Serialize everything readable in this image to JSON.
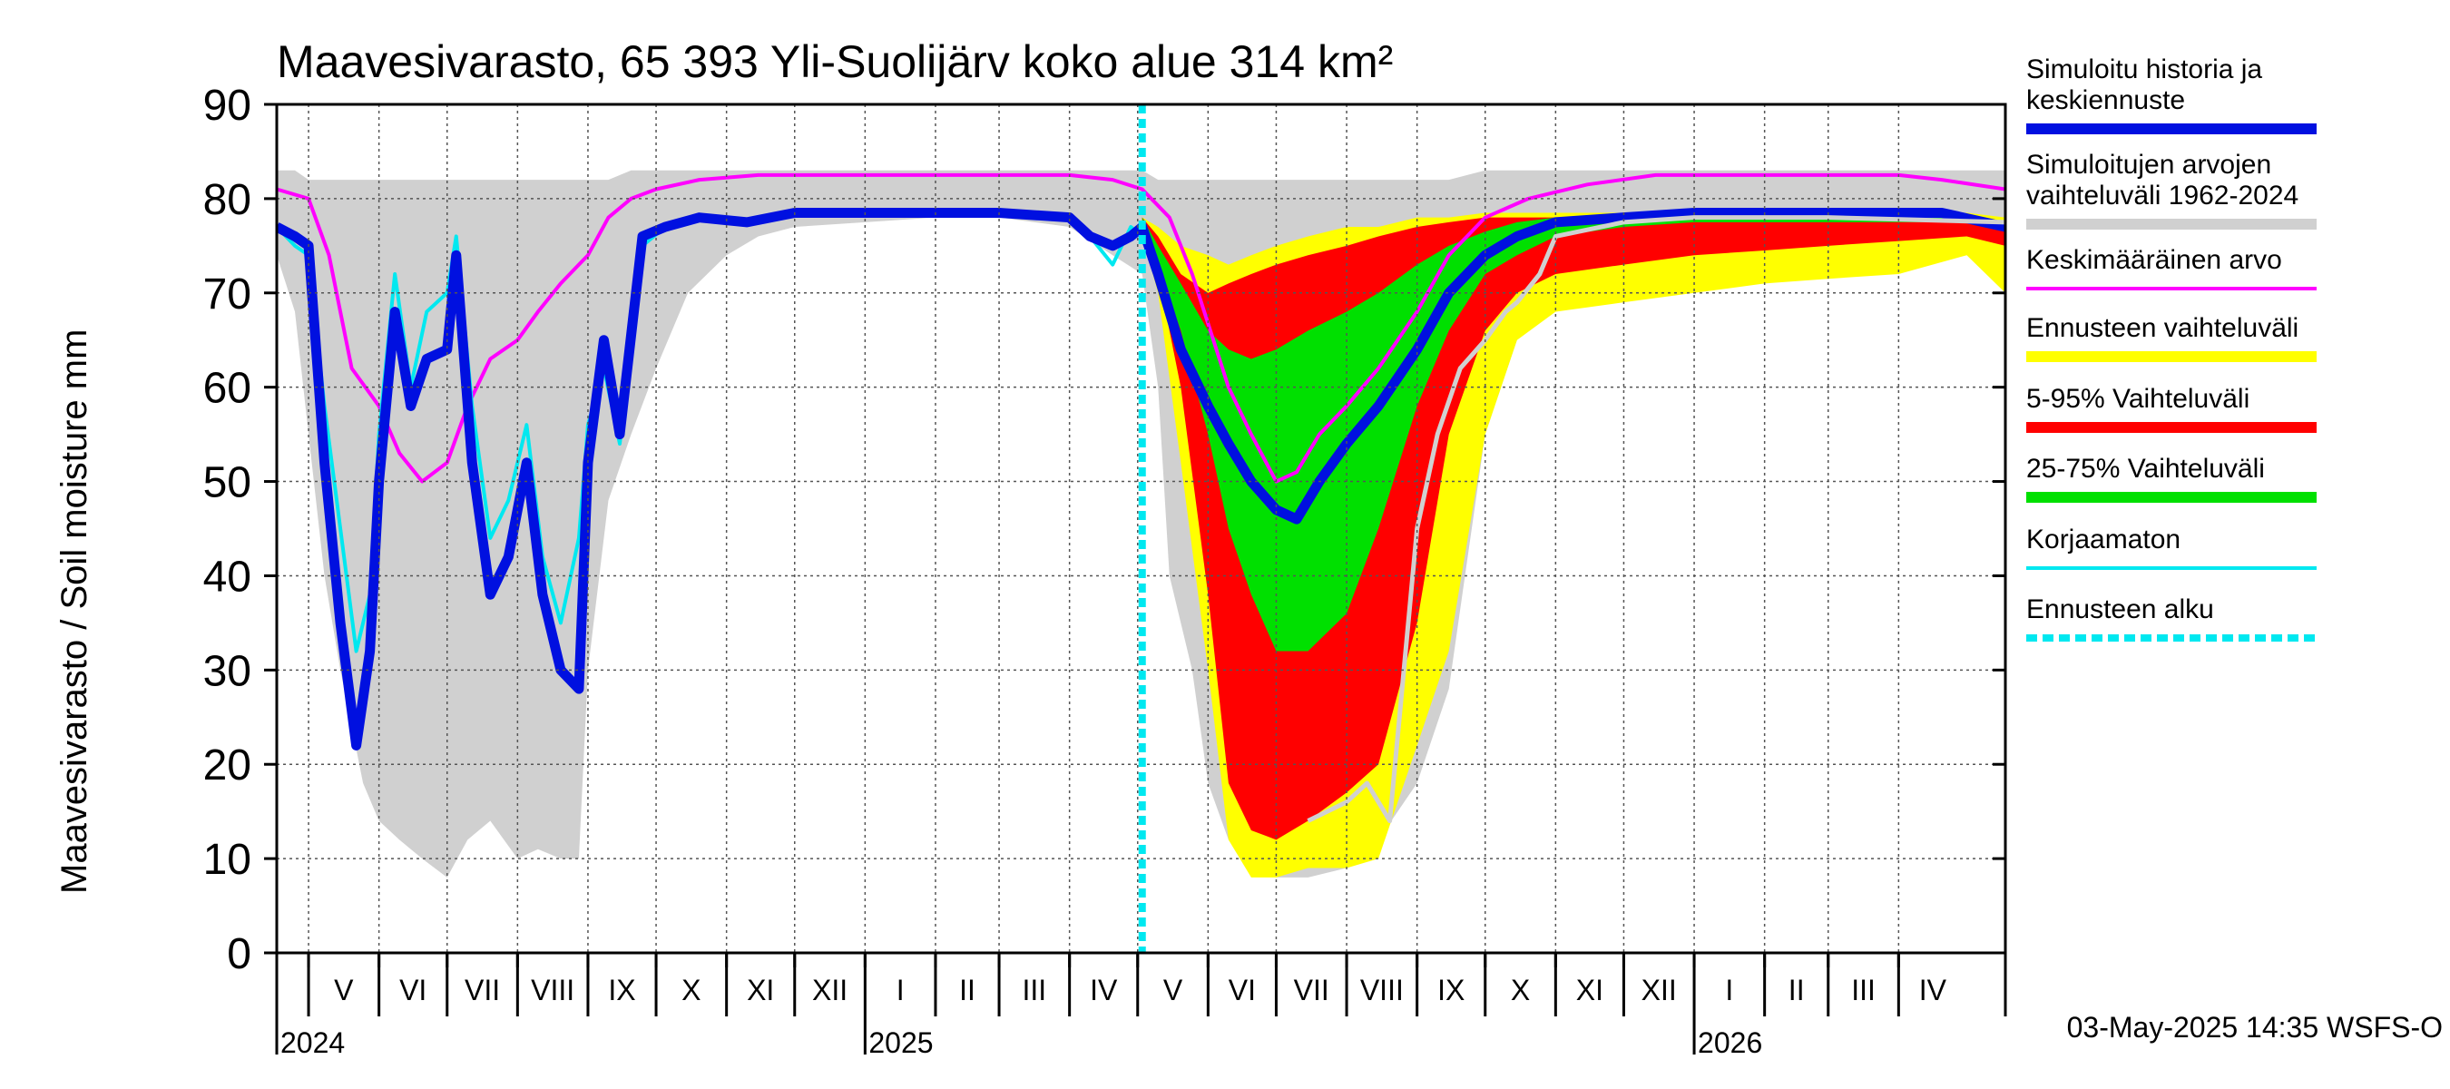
{
  "chart_data": {
    "type": "area",
    "title": "Maavesivarasto, 65 393 Yli-Suolijärv koko alue 314 km²",
    "ylabel": "Maavesivarasto / Soil moisture   mm",
    "xlabel": "",
    "ylim": [
      0,
      90
    ],
    "yticks": [
      0,
      10,
      20,
      30,
      40,
      50,
      60,
      70,
      80,
      90
    ],
    "xlim": [
      "2024-04-17",
      "2026-05-18"
    ],
    "grid": true,
    "legend_placement": "right",
    "timestamp_label": "03-May-2025 14:35 WSFS-O",
    "forecast_start": "2025-05-03",
    "months": [
      {
        "label": "V",
        "start": "2024-05-01",
        "end": "2024-06-01"
      },
      {
        "label": "VI",
        "start": "2024-06-01",
        "end": "2024-07-01"
      },
      {
        "label": "VII",
        "start": "2024-07-01",
        "end": "2024-08-01"
      },
      {
        "label": "VIII",
        "start": "2024-08-01",
        "end": "2024-09-01"
      },
      {
        "label": "IX",
        "start": "2024-09-01",
        "end": "2024-10-01"
      },
      {
        "label": "X",
        "start": "2024-10-01",
        "end": "2024-11-01"
      },
      {
        "label": "XI",
        "start": "2024-11-01",
        "end": "2024-12-01"
      },
      {
        "label": "XII",
        "start": "2024-12-01",
        "end": "2025-01-01"
      },
      {
        "label": "I",
        "start": "2025-01-01",
        "end": "2025-02-01"
      },
      {
        "label": "II",
        "start": "2025-02-01",
        "end": "2025-03-01"
      },
      {
        "label": "III",
        "start": "2025-03-01",
        "end": "2025-04-01"
      },
      {
        "label": "IV",
        "start": "2025-04-01",
        "end": "2025-05-01"
      },
      {
        "label": "V",
        "start": "2025-05-01",
        "end": "2025-06-01"
      },
      {
        "label": "VI",
        "start": "2025-06-01",
        "end": "2025-07-01"
      },
      {
        "label": "VII",
        "start": "2025-07-01",
        "end": "2025-08-01"
      },
      {
        "label": "VIII",
        "start": "2025-08-01",
        "end": "2025-09-01"
      },
      {
        "label": "IX",
        "start": "2025-09-01",
        "end": "2025-10-01"
      },
      {
        "label": "X",
        "start": "2025-10-01",
        "end": "2025-11-01"
      },
      {
        "label": "XI",
        "start": "2025-11-01",
        "end": "2025-12-01"
      },
      {
        "label": "XII",
        "start": "2025-12-01",
        "end": "2026-01-01"
      },
      {
        "label": "I",
        "start": "2026-01-01",
        "end": "2026-02-01"
      },
      {
        "label": "II",
        "start": "2026-02-01",
        "end": "2026-03-01"
      },
      {
        "label": "III",
        "start": "2026-03-01",
        "end": "2026-04-01"
      },
      {
        "label": "IV",
        "start": "2026-04-01",
        "end": "2026-05-01"
      }
    ],
    "years": [
      {
        "label": "2024",
        "date": "2024-04-17"
      },
      {
        "label": "2025",
        "date": "2025-01-01"
      },
      {
        "label": "2026",
        "date": "2026-01-01"
      }
    ],
    "legend": [
      {
        "label": "Simuloitu historia ja keskiennuste",
        "color": "#0010e0",
        "style": "thick"
      },
      {
        "label": "Simuloitujen arvojen vaihteluväli 1962-2024",
        "color": "#d0d0d0",
        "style": "thick"
      },
      {
        "label": "Keskimääräinen arvo",
        "color": "#ff00ff",
        "style": "thin"
      },
      {
        "label": "Ennusteen vaihteluväli",
        "color": "#ffff00",
        "style": "thick"
      },
      {
        "label": "5-95% Vaihteluväli",
        "color": "#ff0000",
        "style": "thick"
      },
      {
        "label": "25-75% Vaihteluväli",
        "color": "#00e000",
        "style": "thick"
      },
      {
        "label": "Korjaamaton",
        "color": "#00e8f0",
        "style": "thin"
      },
      {
        "label": "Ennusteen alku",
        "color": "#00e8f0",
        "style": "dashed"
      }
    ],
    "series": [
      {
        "name": "Simuloitujen arvojen vaihteluväli 1962-2024",
        "kind": "band",
        "color": "#d0d0d0",
        "x": [
          "2024-04-17",
          "2024-04-25",
          "2024-05-01",
          "2024-05-08",
          "2024-05-15",
          "2024-05-25",
          "2024-06-01",
          "2024-06-10",
          "2024-06-20",
          "2024-07-01",
          "2024-07-10",
          "2024-07-20",
          "2024-08-01",
          "2024-08-10",
          "2024-08-20",
          "2024-08-28",
          "2024-09-01",
          "2024-09-10",
          "2024-09-20",
          "2024-10-01",
          "2024-10-15",
          "2024-11-01",
          "2024-11-15",
          "2024-12-01",
          "2025-01-01",
          "2025-02-01",
          "2025-03-01",
          "2025-04-01",
          "2025-04-20",
          "2025-05-03",
          "2025-05-10",
          "2025-05-15",
          "2025-05-25",
          "2025-06-01",
          "2025-06-10",
          "2025-06-20",
          "2025-07-01",
          "2025-07-15",
          "2025-08-01",
          "2025-08-15",
          "2025-09-01",
          "2025-09-15",
          "2025-10-01",
          "2025-10-15",
          "2025-11-01",
          "2025-12-01",
          "2026-01-01",
          "2026-03-01",
          "2026-04-15",
          "2026-05-18"
        ],
        "low": [
          74,
          68,
          55,
          40,
          30,
          18,
          14,
          12,
          10,
          8,
          12,
          14,
          10,
          11,
          10,
          10,
          30,
          48,
          55,
          62,
          70,
          74,
          76,
          77,
          77.5,
          78,
          78,
          77,
          74,
          72,
          60,
          40,
          30,
          18,
          12,
          9,
          8,
          8,
          9,
          12,
          18,
          28,
          55,
          65,
          74,
          77,
          77.5,
          78,
          78,
          77
        ],
        "high": [
          83,
          83,
          82,
          82,
          82,
          82,
          82,
          82,
          82,
          82,
          82,
          82,
          82,
          82,
          82,
          82,
          82,
          82,
          83,
          83,
          83,
          83,
          83,
          83,
          83,
          83,
          83,
          83,
          83,
          83,
          82,
          82,
          82,
          82,
          82,
          82,
          82,
          82,
          82,
          82,
          82,
          82,
          83,
          83,
          83,
          83,
          83,
          83,
          83,
          83
        ]
      },
      {
        "name": "Ennusteen vaihteluväli",
        "kind": "band",
        "color": "#ffff00",
        "x": [
          "2025-05-03",
          "2025-05-10",
          "2025-05-20",
          "2025-06-01",
          "2025-06-10",
          "2025-06-20",
          "2025-07-01",
          "2025-07-15",
          "2025-08-01",
          "2025-08-15",
          "2025-09-01",
          "2025-09-15",
          "2025-10-01",
          "2025-10-15",
          "2025-11-01",
          "2025-12-01",
          "2026-01-01",
          "2026-02-01",
          "2026-03-01",
          "2026-04-01",
          "2026-05-01",
          "2026-05-18"
        ],
        "low": [
          76,
          70,
          52,
          30,
          12,
          8,
          8,
          9,
          9,
          10,
          22,
          32,
          55,
          65,
          68,
          69,
          70,
          71,
          71.5,
          72,
          74,
          70
        ],
        "high": [
          78,
          77,
          75,
          74,
          73,
          74,
          75,
          76,
          77,
          77,
          78,
          78,
          78.5,
          78.5,
          78.5,
          78.5,
          78.5,
          78.5,
          78.5,
          78.5,
          78.5,
          78
        ]
      },
      {
        "name": "5-95% Vaihteluväli",
        "kind": "band",
        "color": "#ff0000",
        "x": [
          "2025-05-03",
          "2025-05-10",
          "2025-05-20",
          "2025-06-01",
          "2025-06-10",
          "2025-06-20",
          "2025-07-01",
          "2025-07-15",
          "2025-08-01",
          "2025-08-15",
          "2025-09-01",
          "2025-09-15",
          "2025-10-01",
          "2025-10-15",
          "2025-11-01",
          "2025-12-01",
          "2026-01-01",
          "2026-02-01",
          "2026-03-01",
          "2026-04-01",
          "2026-05-01",
          "2026-05-18"
        ],
        "low": [
          76,
          72,
          60,
          38,
          18,
          13,
          12,
          14,
          17,
          20,
          35,
          55,
          66,
          70,
          72,
          73,
          74,
          74.5,
          75,
          75.5,
          76,
          75
        ],
        "high": [
          78,
          76,
          72,
          70,
          71,
          72,
          73,
          74,
          75,
          76,
          77,
          77.5,
          78,
          78,
          78,
          78,
          78,
          78,
          78,
          78,
          78,
          77.5
        ]
      },
      {
        "name": "25-75% Vaihteluväli",
        "kind": "band",
        "color": "#00e000",
        "x": [
          "2025-05-03",
          "2025-05-10",
          "2025-05-20",
          "2025-06-01",
          "2025-06-10",
          "2025-06-20",
          "2025-07-01",
          "2025-07-15",
          "2025-08-01",
          "2025-08-15",
          "2025-09-01",
          "2025-09-15",
          "2025-10-01",
          "2025-10-15",
          "2025-11-01",
          "2025-12-01",
          "2026-01-01",
          "2026-02-01",
          "2026-03-01",
          "2026-04-01",
          "2026-05-01",
          "2026-05-18"
        ],
        "low": [
          76,
          73,
          66,
          55,
          45,
          38,
          32,
          32,
          36,
          45,
          58,
          66,
          72,
          74,
          76,
          77,
          77.5,
          77.5,
          77.5,
          77.5,
          77.5,
          77
        ],
        "high": [
          78,
          75,
          71,
          66,
          64,
          63,
          64,
          66,
          68,
          70,
          73,
          75,
          76.5,
          77.5,
          78,
          78,
          78,
          78,
          78,
          78,
          78,
          77.5
        ]
      },
      {
        "name": "Keskimääräinen arvo",
        "kind": "line",
        "color": "#ff00ff",
        "x": [
          "2024-04-17",
          "2024-05-01",
          "2024-05-10",
          "2024-05-20",
          "2024-06-01",
          "2024-06-10",
          "2024-06-20",
          "2024-07-01",
          "2024-07-10",
          "2024-07-20",
          "2024-08-01",
          "2024-08-10",
          "2024-08-20",
          "2024-09-01",
          "2024-09-10",
          "2024-09-20",
          "2024-10-01",
          "2024-10-20",
          "2024-11-15",
          "2024-12-15",
          "2025-02-01",
          "2025-04-01",
          "2025-04-20",
          "2025-05-03",
          "2025-05-15",
          "2025-05-25",
          "2025-06-10",
          "2025-06-20",
          "2025-07-01",
          "2025-07-10",
          "2025-07-20",
          "2025-08-01",
          "2025-08-15",
          "2025-09-01",
          "2025-09-15",
          "2025-10-01",
          "2025-10-20",
          "2025-11-15",
          "2025-12-15",
          "2026-02-01",
          "2026-04-01",
          "2026-04-20",
          "2026-05-18"
        ],
        "values": [
          81,
          80,
          74,
          62,
          58,
          53,
          50,
          52,
          58,
          63,
          65,
          68,
          71,
          74,
          78,
          80,
          81,
          82,
          82.5,
          82.5,
          82.5,
          82.5,
          82,
          81,
          78,
          72,
          60,
          55,
          50,
          51,
          55,
          58,
          62,
          68,
          74,
          78,
          80,
          81.5,
          82.5,
          82.5,
          82.5,
          82,
          81
        ]
      },
      {
        "name": "Korjaamaton",
        "kind": "line",
        "color": "#00e8f0",
        "x": [
          "2024-04-17",
          "2024-04-25",
          "2024-05-01",
          "2024-05-08",
          "2024-05-15",
          "2024-05-22",
          "2024-05-28",
          "2024-06-01",
          "2024-06-08",
          "2024-06-15",
          "2024-06-22",
          "2024-07-01",
          "2024-07-05",
          "2024-07-12",
          "2024-07-20",
          "2024-07-28",
          "2024-08-05",
          "2024-08-12",
          "2024-08-20",
          "2024-08-28",
          "2024-09-01",
          "2024-09-08",
          "2024-09-15",
          "2024-09-25",
          "2024-10-05",
          "2024-10-20",
          "2024-11-10",
          "2024-12-01",
          "2025-01-15",
          "2025-03-01",
          "2025-04-01",
          "2025-04-10",
          "2025-04-20",
          "2025-04-28",
          "2025-05-03"
        ],
        "values": [
          77,
          75,
          74,
          58,
          45,
          32,
          38,
          55,
          72,
          60,
          68,
          70,
          76,
          58,
          44,
          48,
          56,
          42,
          35,
          44,
          56,
          62,
          54,
          75,
          77,
          78,
          77.5,
          78.5,
          78.5,
          78.5,
          78,
          76,
          73,
          77,
          76
        ]
      },
      {
        "name": "Simuloitu historia ja keskiennuste",
        "kind": "line",
        "color": "#0010e0",
        "x": [
          "2024-04-17",
          "2024-04-25",
          "2024-05-01",
          "2024-05-08",
          "2024-05-15",
          "2024-05-22",
          "2024-05-28",
          "2024-06-01",
          "2024-06-08",
          "2024-06-15",
          "2024-06-22",
          "2024-07-01",
          "2024-07-05",
          "2024-07-12",
          "2024-07-20",
          "2024-07-28",
          "2024-08-05",
          "2024-08-12",
          "2024-08-20",
          "2024-08-28",
          "2024-09-01",
          "2024-09-08",
          "2024-09-15",
          "2024-09-25",
          "2024-10-05",
          "2024-10-20",
          "2024-11-10",
          "2024-12-01",
          "2025-01-15",
          "2025-03-01",
          "2025-04-01",
          "2025-04-10",
          "2025-04-20",
          "2025-04-28",
          "2025-05-03",
          "2025-05-10",
          "2025-05-20",
          "2025-06-01",
          "2025-06-10",
          "2025-06-20",
          "2025-07-01",
          "2025-07-10",
          "2025-07-20",
          "2025-08-01",
          "2025-08-15",
          "2025-09-01",
          "2025-09-15",
          "2025-10-01",
          "2025-10-15",
          "2025-11-01",
          "2025-12-01",
          "2026-01-01",
          "2026-02-01",
          "2026-03-01",
          "2026-04-01",
          "2026-04-20",
          "2026-05-18"
        ],
        "values": [
          77,
          76,
          75,
          52,
          35,
          22,
          32,
          50,
          68,
          58,
          63,
          64,
          74,
          52,
          38,
          42,
          52,
          38,
          30,
          28,
          52,
          65,
          55,
          76,
          77,
          78,
          77.5,
          78.5,
          78.5,
          78.5,
          78,
          76,
          75,
          76,
          77,
          72,
          64,
          58,
          54,
          50,
          47,
          46,
          50,
          54,
          58,
          64,
          70,
          74,
          76,
          77.5,
          78,
          78.5,
          78.5,
          78.5,
          78.5,
          78.5,
          77
        ]
      },
      {
        "name": "Korjaamaton (ennuste)",
        "kind": "line",
        "color": "#d0d0d0",
        "x": [
          "2025-07-15",
          "2025-08-01",
          "2025-08-10",
          "2025-08-20",
          "2025-09-01",
          "2025-09-10",
          "2025-09-20",
          "2025-10-01",
          "2025-10-10",
          "2025-10-15",
          "2025-10-25",
          "2025-11-01",
          "2025-12-01",
          "2026-01-01",
          "2026-03-01",
          "2026-05-18"
        ],
        "values": [
          14,
          16,
          18,
          14,
          45,
          55,
          62,
          65,
          68,
          69,
          72,
          76,
          77.5,
          78,
          78,
          77.5
        ]
      }
    ]
  }
}
